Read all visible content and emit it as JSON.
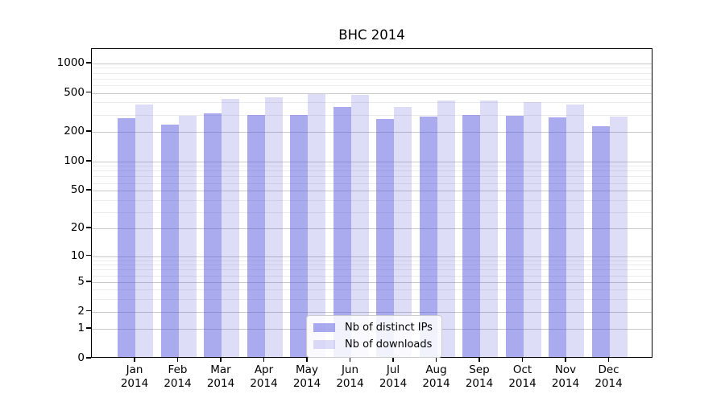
{
  "chart_data": {
    "type": "bar",
    "title": "BHC 2014",
    "categories": [
      "Jan 2014",
      "Feb 2014",
      "Mar 2014",
      "Apr 2014",
      "May 2014",
      "Jun 2014",
      "Jul 2014",
      "Aug 2014",
      "Sep 2014",
      "Oct 2014",
      "Nov 2014",
      "Dec 2014"
    ],
    "x_months": [
      "Jan",
      "Feb",
      "Mar",
      "Apr",
      "May",
      "Jun",
      "Jul",
      "Aug",
      "Sep",
      "Oct",
      "Nov",
      "Dec"
    ],
    "x_year": "2014",
    "series": [
      {
        "name": "Nb of distinct IPs",
        "color": "rgba(85,85,221,0.5)",
        "values": [
          265,
          228,
          298,
          290,
          286,
          345,
          260,
          275,
          287,
          282,
          270,
          220
        ]
      },
      {
        "name": "Nb of downloads",
        "color": "rgba(85,85,221,0.2)",
        "values": [
          370,
          280,
          420,
          433,
          470,
          462,
          350,
          404,
          404,
          386,
          370,
          279
        ]
      }
    ],
    "yscale": "log1p",
    "ylim": [
      0,
      1400
    ],
    "yticks": [
      0,
      1,
      2,
      5,
      10,
      20,
      50,
      100,
      200,
      500,
      1000
    ],
    "ytick_labels": [
      "0",
      "1",
      "2",
      "5",
      "10",
      "20",
      "50",
      "100",
      "200",
      "500",
      "1000"
    ],
    "minor_yticks": [
      3,
      4,
      6,
      7,
      8,
      9,
      30,
      40,
      60,
      70,
      80,
      90,
      300,
      400,
      600,
      700,
      800,
      900
    ],
    "xlabel": "",
    "ylabel": "",
    "grid": "on",
    "legend_position": "lower center"
  },
  "colors": {
    "background": "#ffffff",
    "axis": "#000000",
    "grid_major": "#c9c9c9",
    "grid_minor": "#ebebeb",
    "bar_distinct_ips": "rgba(85,85,221,0.5)",
    "bar_downloads": "rgba(85,85,221,0.2)",
    "legend_border": "#cccccc"
  }
}
